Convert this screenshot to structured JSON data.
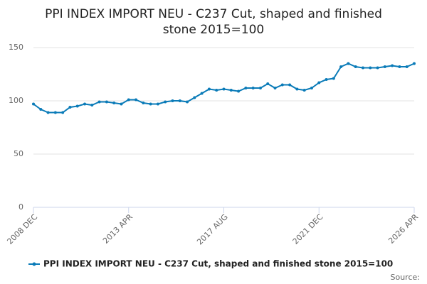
{
  "chart_data": {
    "type": "line",
    "title": "PPI INDEX IMPORT NEU - C237 Cut, shaped and finished stone 2015=100",
    "categories": [
      "2008 DEC",
      null,
      null,
      null,
      null,
      null,
      null,
      null,
      null,
      null,
      null,
      null,
      null,
      "2013 APR",
      null,
      null,
      null,
      null,
      null,
      null,
      null,
      null,
      null,
      null,
      null,
      null,
      "2017 AUG",
      null,
      null,
      null,
      null,
      null,
      null,
      null,
      null,
      null,
      null,
      null,
      null,
      "2021 DEC",
      null,
      null,
      null,
      null,
      null,
      null,
      null,
      null,
      null,
      null,
      null,
      null,
      "2026 APR"
    ],
    "series": [
      {
        "name": "PPI INDEX IMPORT NEU - C237 Cut, shaped and finished stone 2015=100",
        "color": "#0a7bb8",
        "values": [
          97,
          92,
          89,
          89,
          89,
          94,
          95,
          97,
          96,
          99,
          99,
          98,
          97,
          101,
          101,
          98,
          97,
          97,
          99,
          100,
          100,
          99,
          103,
          107,
          111,
          110,
          111,
          110,
          109,
          112,
          112,
          112,
          116,
          112,
          115,
          115,
          111,
          110,
          112,
          117,
          120,
          121,
          132,
          135,
          132,
          131,
          131,
          131,
          132,
          133,
          132,
          132,
          135
        ]
      }
    ],
    "ylim": [
      0,
      150
    ],
    "yticks": [
      0,
      50,
      100,
      150
    ],
    "grid": true,
    "source": "Source:"
  }
}
